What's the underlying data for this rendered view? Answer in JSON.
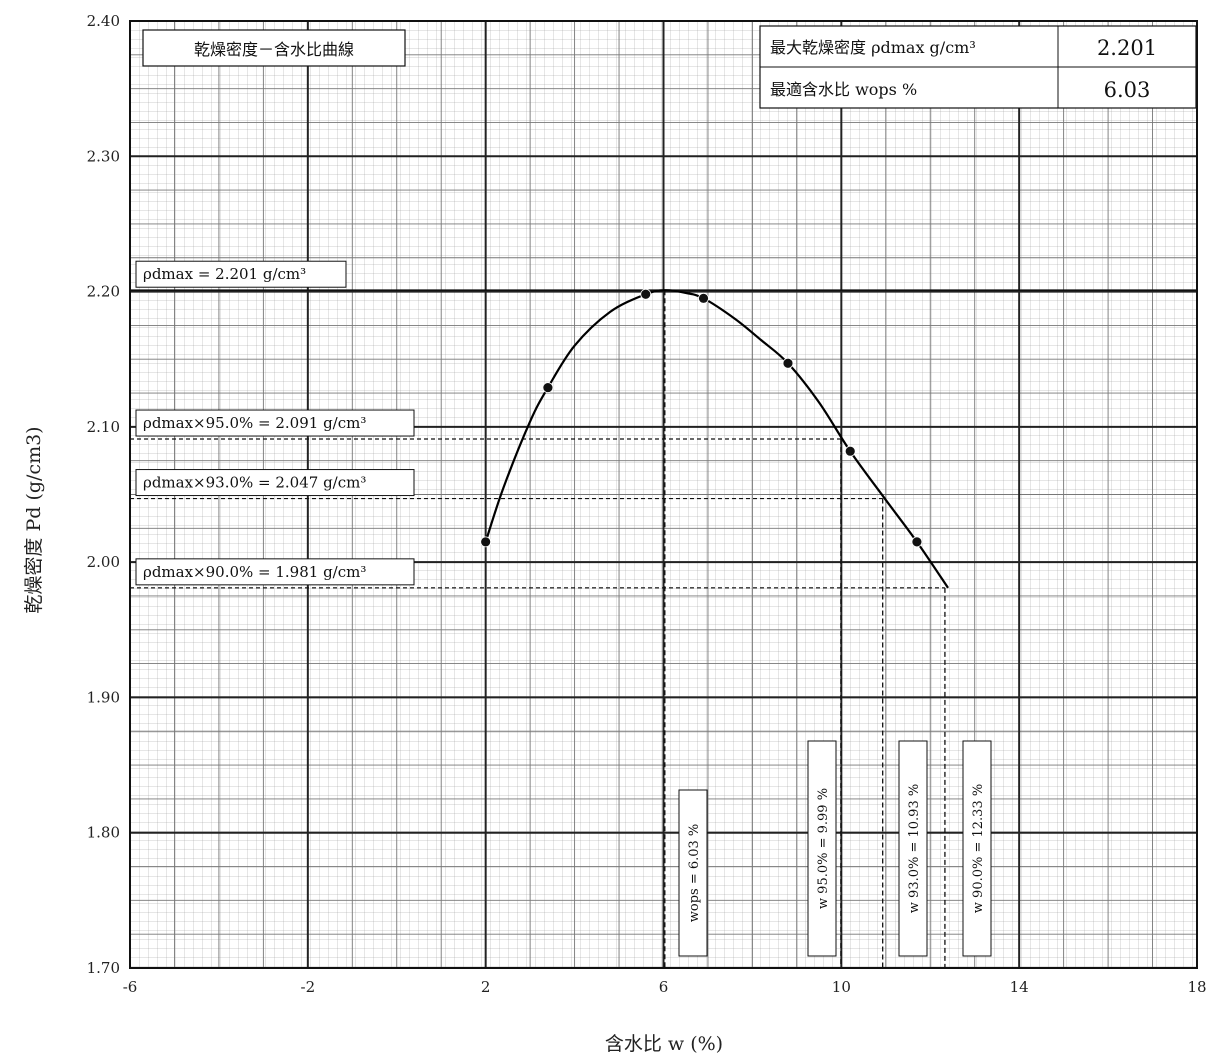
{
  "chart_data": {
    "type": "line",
    "title": "乾燥密度－含水比曲線",
    "xlabel": "含水比 w (%)",
    "ylabel": "乾燥密度 Pd (g/cm3)",
    "xlim": [
      -6,
      18
    ],
    "ylim": [
      1.7,
      2.4
    ],
    "x_ticks": [
      "-6",
      "-2",
      "2",
      "6",
      "10",
      "14",
      "18"
    ],
    "y_ticks": [
      "1.70",
      "1.80",
      "1.90",
      "2.00",
      "2.10",
      "2.20",
      "2.30",
      "2.40"
    ],
    "grid": true,
    "series": [
      {
        "points": [
          {
            "x": 2.0,
            "y": 2.015
          },
          {
            "x": 3.4,
            "y": 2.129
          },
          {
            "x": 5.6,
            "y": 2.198
          },
          {
            "x": 6.9,
            "y": 2.195
          },
          {
            "x": 8.8,
            "y": 2.147
          },
          {
            "x": 10.2,
            "y": 2.082
          },
          {
            "x": 11.7,
            "y": 2.015
          }
        ],
        "curve": [
          {
            "x": 2.0,
            "y": 2.015
          },
          {
            "x": 2.4,
            "y": 2.055
          },
          {
            "x": 3.0,
            "y": 2.104
          },
          {
            "x": 3.4,
            "y": 2.129
          },
          {
            "x": 4.0,
            "y": 2.16
          },
          {
            "x": 4.8,
            "y": 2.185
          },
          {
            "x": 5.6,
            "y": 2.198
          },
          {
            "x": 6.03,
            "y": 2.201
          },
          {
            "x": 6.5,
            "y": 2.199
          },
          {
            "x": 6.9,
            "y": 2.195
          },
          {
            "x": 7.6,
            "y": 2.18
          },
          {
            "x": 8.2,
            "y": 2.164
          },
          {
            "x": 8.8,
            "y": 2.147
          },
          {
            "x": 9.5,
            "y": 2.118
          },
          {
            "x": 10.2,
            "y": 2.082
          },
          {
            "x": 11.0,
            "y": 2.046
          },
          {
            "x": 11.7,
            "y": 2.015
          },
          {
            "x": 12.4,
            "y": 1.981
          }
        ]
      }
    ],
    "reference_lines": {
      "horizontal": [
        {
          "y": 2.201,
          "label": "ρdmax = 2.201 g/cm³",
          "style": "solid"
        },
        {
          "y": 2.091,
          "label": "ρdmax×95.0% = 2.091 g/cm³",
          "style": "dashed"
        },
        {
          "y": 2.047,
          "label": "ρdmax×93.0% = 2.047 g/cm³",
          "style": "dashed"
        },
        {
          "y": 1.981,
          "label": "ρdmax×90.0% = 1.981 g/cm³",
          "style": "dashed"
        }
      ],
      "vertical": [
        {
          "x": 6.03,
          "label": "wops = 6.03 %",
          "style": "dashed"
        },
        {
          "x": 9.99,
          "label": "w 95.0% = 9.99 %",
          "style": "dashed"
        },
        {
          "x": 10.93,
          "label": "w 93.0% = 10.93 %",
          "style": "dashed"
        },
        {
          "x": 12.33,
          "label": "w 90.0% = 12.33 %",
          "style": "dashed"
        }
      ]
    },
    "summary_table": [
      {
        "label": "最大乾燥密度 ρdmax g/cm³",
        "value": "2.201"
      },
      {
        "label": "最適含水比 wops %",
        "value": "6.03"
      }
    ]
  }
}
